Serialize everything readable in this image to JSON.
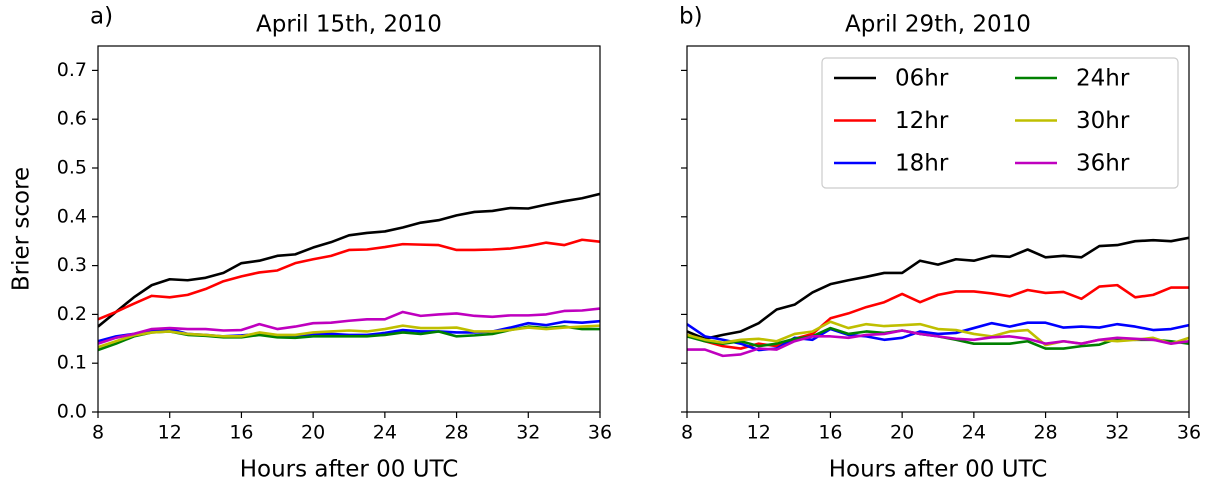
{
  "chart_data": [
    {
      "type": "line",
      "panel_label": "a)",
      "title": "April 15th, 2010",
      "xlabel": "Hours after 00 UTC",
      "ylabel": "Brier score",
      "x": [
        8,
        9,
        10,
        11,
        12,
        13,
        14,
        15,
        16,
        17,
        18,
        19,
        20,
        21,
        22,
        23,
        24,
        25,
        26,
        27,
        28,
        29,
        30,
        31,
        32,
        33,
        34,
        35,
        36
      ],
      "xlim": [
        8,
        36
      ],
      "xticks": [
        8,
        12,
        16,
        20,
        24,
        28,
        32,
        36
      ],
      "ylim": [
        0,
        0.75
      ],
      "yticks": [
        {
          "value": 0,
          "label": "0.0"
        },
        0.1,
        0.2,
        0.3,
        0.4,
        0.5,
        0.6,
        0.7
      ],
      "series": [
        {
          "color": "#000000",
          "values": [
            0.175,
            0.205,
            0.235,
            0.26,
            0.272,
            0.27,
            0.275,
            0.285,
            0.305,
            0.31,
            0.32,
            0.323,
            0.337,
            0.348,
            0.362,
            0.367,
            0.37,
            0.378,
            0.388,
            0.393,
            0.403,
            0.41,
            0.412,
            0.418,
            0.417,
            0.425,
            0.432,
            0.438,
            0.447
          ]
        },
        {
          "color": "#ff0000",
          "values": [
            0.19,
            0.205,
            0.222,
            0.238,
            0.235,
            0.24,
            0.252,
            0.268,
            0.278,
            0.286,
            0.29,
            0.305,
            0.313,
            0.32,
            0.332,
            0.333,
            0.338,
            0.344,
            0.343,
            0.342,
            0.332,
            0.332,
            0.333,
            0.335,
            0.34,
            0.347,
            0.342,
            0.353,
            0.349
          ]
        },
        {
          "color": "#0000ff",
          "values": [
            0.145,
            0.155,
            0.16,
            0.168,
            0.17,
            0.16,
            0.158,
            0.155,
            0.157,
            0.16,
            0.155,
            0.155,
            0.16,
            0.16,
            0.158,
            0.158,
            0.162,
            0.168,
            0.165,
            0.165,
            0.163,
            0.163,
            0.165,
            0.173,
            0.182,
            0.178,
            0.185,
            0.183,
            0.186
          ]
        },
        {
          "color": "#008000",
          "values": [
            0.127,
            0.14,
            0.155,
            0.163,
            0.165,
            0.158,
            0.156,
            0.153,
            0.153,
            0.158,
            0.153,
            0.152,
            0.155,
            0.155,
            0.155,
            0.155,
            0.158,
            0.163,
            0.16,
            0.165,
            0.155,
            0.157,
            0.16,
            0.168,
            0.175,
            0.172,
            0.175,
            0.17,
            0.17
          ]
        },
        {
          "color": "#bfbf00",
          "values": [
            0.133,
            0.145,
            0.157,
            0.163,
            0.165,
            0.16,
            0.158,
            0.155,
            0.155,
            0.163,
            0.158,
            0.158,
            0.163,
            0.165,
            0.167,
            0.165,
            0.17,
            0.177,
            0.172,
            0.172,
            0.173,
            0.165,
            0.165,
            0.168,
            0.173,
            0.17,
            0.173,
            0.175,
            0.177
          ]
        },
        {
          "color": "#bf00bf",
          "values": [
            0.14,
            0.152,
            0.16,
            0.17,
            0.172,
            0.17,
            0.17,
            0.167,
            0.168,
            0.18,
            0.17,
            0.175,
            0.182,
            0.183,
            0.187,
            0.19,
            0.19,
            0.205,
            0.197,
            0.2,
            0.202,
            0.197,
            0.195,
            0.198,
            0.198,
            0.2,
            0.207,
            0.208,
            0.212
          ]
        }
      ]
    },
    {
      "type": "line",
      "panel_label": "b)",
      "title": "April 29th, 2010",
      "xlabel": "Hours after 00 UTC",
      "legend": "upper right",
      "x": [
        8,
        9,
        10,
        11,
        12,
        13,
        14,
        15,
        16,
        17,
        18,
        19,
        20,
        21,
        22,
        23,
        24,
        25,
        26,
        27,
        28,
        29,
        30,
        31,
        32,
        33,
        34,
        35,
        36
      ],
      "xlim": [
        8,
        36
      ],
      "xticks": [
        8,
        12,
        16,
        20,
        24,
        28,
        32,
        36
      ],
      "ylim": [
        0,
        0.75
      ],
      "yticks": [
        0,
        0.1,
        0.2,
        0.3,
        0.4,
        0.5,
        0.6,
        0.7
      ],
      "series": [
        {
          "name": "06hr",
          "color": "#000000",
          "values": [
            0.165,
            0.15,
            0.158,
            0.165,
            0.182,
            0.21,
            0.22,
            0.245,
            0.262,
            0.27,
            0.277,
            0.285,
            0.285,
            0.31,
            0.302,
            0.313,
            0.31,
            0.32,
            0.318,
            0.333,
            0.317,
            0.32,
            0.317,
            0.34,
            0.342,
            0.35,
            0.352,
            0.35,
            0.357
          ]
        },
        {
          "name": "12hr",
          "color": "#ff0000",
          "values": [
            0.158,
            0.145,
            0.135,
            0.13,
            0.14,
            0.135,
            0.15,
            0.16,
            0.192,
            0.202,
            0.215,
            0.225,
            0.242,
            0.225,
            0.24,
            0.247,
            0.247,
            0.243,
            0.237,
            0.25,
            0.244,
            0.246,
            0.232,
            0.257,
            0.26,
            0.235,
            0.24,
            0.255,
            0.255
          ]
        },
        {
          "name": "18hr",
          "color": "#0000ff",
          "values": [
            0.18,
            0.155,
            0.148,
            0.14,
            0.127,
            0.13,
            0.152,
            0.148,
            0.17,
            0.158,
            0.155,
            0.148,
            0.152,
            0.165,
            0.16,
            0.162,
            0.172,
            0.182,
            0.175,
            0.183,
            0.183,
            0.173,
            0.175,
            0.173,
            0.18,
            0.175,
            0.168,
            0.17,
            0.178
          ]
        },
        {
          "name": "24hr",
          "color": "#008000",
          "values": [
            0.155,
            0.145,
            0.14,
            0.145,
            0.135,
            0.14,
            0.15,
            0.155,
            0.172,
            0.16,
            0.165,
            0.162,
            0.167,
            0.16,
            0.155,
            0.148,
            0.14,
            0.14,
            0.14,
            0.145,
            0.13,
            0.13,
            0.135,
            0.138,
            0.15,
            0.148,
            0.148,
            0.145,
            0.14
          ]
        },
        {
          "name": "30hr",
          "color": "#bfbf00",
          "values": [
            0.158,
            0.148,
            0.142,
            0.148,
            0.15,
            0.145,
            0.16,
            0.165,
            0.185,
            0.172,
            0.18,
            0.176,
            0.178,
            0.18,
            0.17,
            0.168,
            0.16,
            0.155,
            0.165,
            0.168,
            0.137,
            0.145,
            0.14,
            0.148,
            0.145,
            0.148,
            0.152,
            0.14,
            0.152
          ]
        },
        {
          "name": "36hr",
          "color": "#bf00bf",
          "values": [
            0.128,
            0.128,
            0.115,
            0.118,
            0.13,
            0.128,
            0.145,
            0.155,
            0.155,
            0.152,
            0.158,
            0.16,
            0.167,
            0.16,
            0.155,
            0.15,
            0.148,
            0.153,
            0.155,
            0.15,
            0.14,
            0.145,
            0.14,
            0.148,
            0.152,
            0.15,
            0.148,
            0.14,
            0.145
          ]
        }
      ]
    }
  ]
}
